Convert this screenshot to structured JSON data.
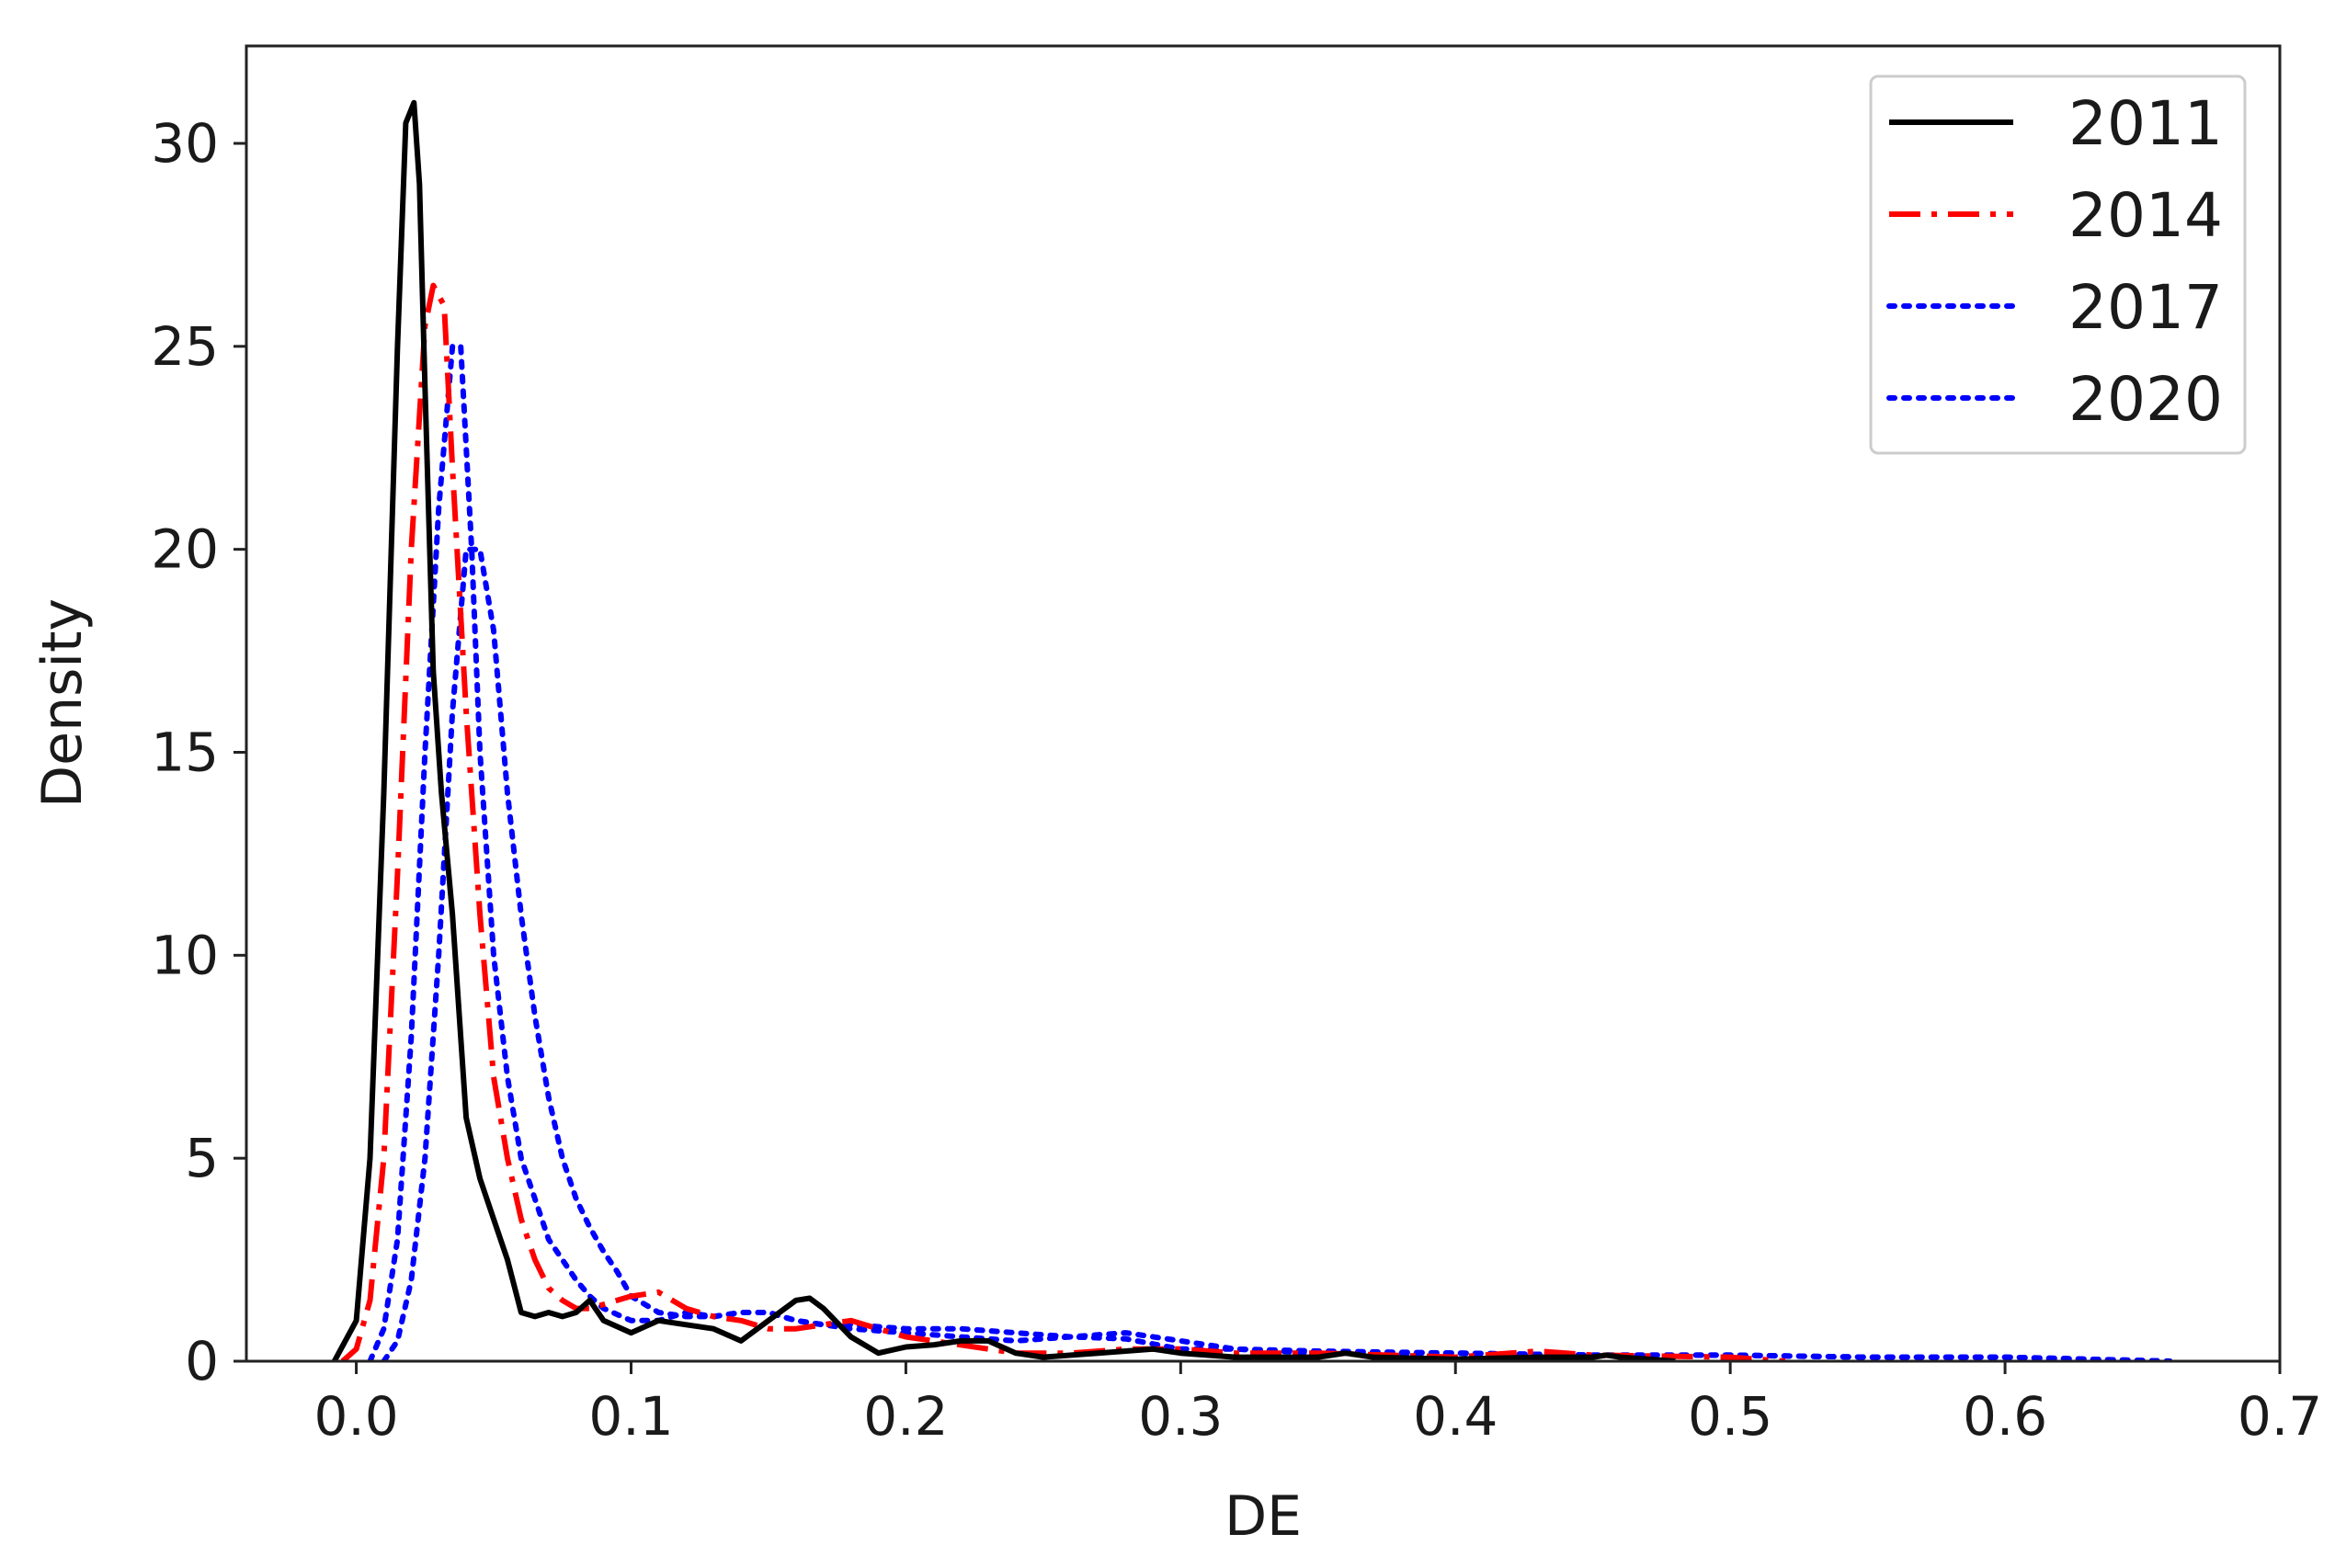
{
  "chart_data": {
    "type": "line",
    "title": "",
    "xlabel": "DE",
    "ylabel": "Density",
    "xlim": [
      -0.04,
      0.7
    ],
    "ylim": [
      0,
      32.4
    ],
    "xticks": [
      0.0,
      0.1,
      0.2,
      0.3,
      0.4,
      0.5,
      0.6,
      0.7
    ],
    "xtick_labels": [
      "0.0",
      "0.1",
      "0.2",
      "0.3",
      "0.4",
      "0.5",
      "0.6",
      "0.7"
    ],
    "yticks": [
      0,
      5,
      10,
      15,
      20,
      25,
      30
    ],
    "ytick_labels": [
      "0",
      "5",
      "10",
      "15",
      "20",
      "25",
      "30"
    ],
    "grid": false,
    "legend_position": "top-right",
    "series": [
      {
        "name": "2011",
        "color": "#000000",
        "style": "solid",
        "x": [
          -0.008,
          0.0,
          0.005,
          0.01,
          0.015,
          0.018,
          0.021,
          0.023,
          0.025,
          0.028,
          0.031,
          0.035,
          0.04,
          0.045,
          0.05,
          0.055,
          0.06,
          0.065,
          0.07,
          0.075,
          0.08,
          0.085,
          0.09,
          0.1,
          0.11,
          0.12,
          0.13,
          0.14,
          0.15,
          0.16,
          0.165,
          0.17,
          0.18,
          0.19,
          0.2,
          0.21,
          0.22,
          0.23,
          0.24,
          0.25,
          0.27,
          0.29,
          0.3,
          0.32,
          0.35,
          0.36,
          0.37,
          0.4,
          0.43,
          0.45,
          0.455,
          0.46,
          0.47,
          0.48
        ],
        "y": [
          0.0,
          1.0,
          5.0,
          14.0,
          25.0,
          30.5,
          31.0,
          29.0,
          24.0,
          17.0,
          14.0,
          11.0,
          6.0,
          4.5,
          3.5,
          2.5,
          1.2,
          1.1,
          1.2,
          1.1,
          1.2,
          1.5,
          1.0,
          0.7,
          1.0,
          0.9,
          0.8,
          0.5,
          1.0,
          1.5,
          1.55,
          1.3,
          0.6,
          0.2,
          0.35,
          0.4,
          0.5,
          0.5,
          0.2,
          0.1,
          0.2,
          0.3,
          0.2,
          0.1,
          0.1,
          0.2,
          0.1,
          0.05,
          0.1,
          0.1,
          0.15,
          0.1,
          0.05,
          0.0
        ]
      },
      {
        "name": "2014",
        "color": "#ff0000",
        "style": "dashdot",
        "x": [
          -0.005,
          0.0,
          0.005,
          0.01,
          0.015,
          0.02,
          0.025,
          0.028,
          0.032,
          0.035,
          0.04,
          0.045,
          0.05,
          0.055,
          0.06,
          0.065,
          0.07,
          0.075,
          0.08,
          0.085,
          0.09,
          0.1,
          0.11,
          0.12,
          0.13,
          0.14,
          0.15,
          0.16,
          0.17,
          0.18,
          0.19,
          0.2,
          0.22,
          0.24,
          0.26,
          0.28,
          0.3,
          0.32,
          0.35,
          0.4,
          0.42,
          0.43,
          0.45,
          0.5,
          0.52
        ],
        "y": [
          0.0,
          0.3,
          1.5,
          5.0,
          12.0,
          20.0,
          25.5,
          26.5,
          26.0,
          22.0,
          16.0,
          11.0,
          7.0,
          5.0,
          3.5,
          2.5,
          1.8,
          1.5,
          1.3,
          1.3,
          1.4,
          1.6,
          1.7,
          1.3,
          1.1,
          1.0,
          0.8,
          0.8,
          0.9,
          1.0,
          0.8,
          0.6,
          0.4,
          0.2,
          0.2,
          0.3,
          0.3,
          0.2,
          0.2,
          0.1,
          0.2,
          0.25,
          0.15,
          0.1,
          0.0
        ]
      },
      {
        "name": "2017",
        "color": "#0000ff",
        "style": "dotted",
        "x": [
          0.005,
          0.01,
          0.015,
          0.02,
          0.025,
          0.03,
          0.035,
          0.038,
          0.042,
          0.045,
          0.05,
          0.055,
          0.06,
          0.065,
          0.07,
          0.075,
          0.08,
          0.085,
          0.09,
          0.1,
          0.11,
          0.12,
          0.13,
          0.14,
          0.15,
          0.16,
          0.17,
          0.18,
          0.2,
          0.22,
          0.24,
          0.26,
          0.28,
          0.3,
          0.32,
          0.35,
          0.4,
          0.45,
          0.5,
          0.55,
          0.6,
          0.66
        ],
        "y": [
          0.0,
          0.8,
          3.0,
          8.0,
          15.0,
          21.0,
          25.0,
          25.0,
          20.0,
          15.0,
          10.0,
          7.0,
          5.0,
          4.0,
          3.0,
          2.5,
          2.0,
          1.6,
          1.3,
          1.0,
          1.0,
          1.2,
          1.1,
          1.2,
          1.2,
          1.0,
          0.9,
          0.8,
          0.7,
          0.6,
          0.5,
          0.6,
          0.55,
          0.3,
          0.3,
          0.2,
          0.2,
          0.15,
          0.15,
          0.1,
          0.1,
          0.0
        ]
      },
      {
        "name": "2020",
        "color": "#0000ff",
        "style": "dotted",
        "x": [
          0.01,
          0.015,
          0.02,
          0.025,
          0.03,
          0.035,
          0.04,
          0.045,
          0.05,
          0.055,
          0.06,
          0.065,
          0.07,
          0.075,
          0.08,
          0.085,
          0.09,
          0.095,
          0.1,
          0.11,
          0.12,
          0.13,
          0.14,
          0.15,
          0.16,
          0.17,
          0.18,
          0.2,
          0.22,
          0.24,
          0.26,
          0.28,
          0.3,
          0.32,
          0.35,
          0.4,
          0.45,
          0.5,
          0.55,
          0.6,
          0.66
        ],
        "y": [
          0.0,
          0.5,
          2.0,
          5.0,
          10.0,
          16.0,
          20.0,
          20.0,
          18.0,
          14.0,
          11.0,
          8.5,
          6.5,
          5.0,
          4.0,
          3.3,
          2.7,
          2.2,
          1.6,
          1.2,
          1.1,
          1.1,
          1.2,
          1.2,
          1.0,
          0.9,
          0.9,
          0.8,
          0.8,
          0.7,
          0.6,
          0.7,
          0.5,
          0.3,
          0.25,
          0.2,
          0.15,
          0.15,
          0.1,
          0.1,
          0.0
        ]
      }
    ]
  }
}
